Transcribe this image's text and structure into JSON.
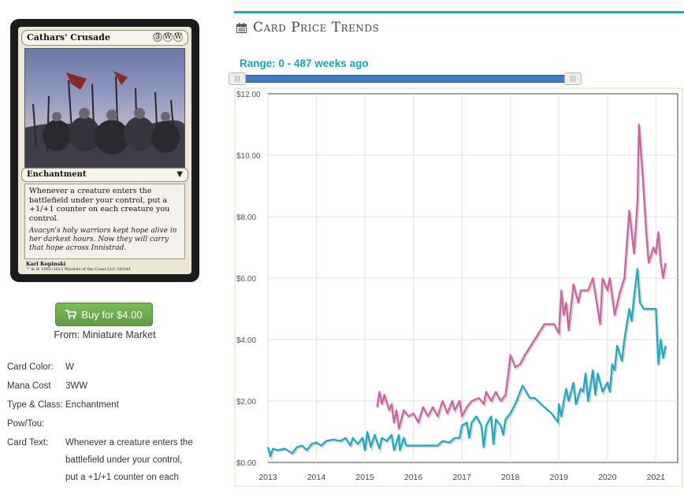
{
  "card": {
    "name": "Cathars' Crusade",
    "mana_cost_symbols": [
      "3",
      "W",
      "W"
    ],
    "type_line": "Enchantment",
    "rules_text": "Whenever a creature enters the battlefield under your control, put a +1/+1 counter on each creature you control.",
    "flavor_text": "Avacyn's holy warriors kept hope alive in her darkest hours. Now they will carry that hope across Innistrad.",
    "artist": "Karl Kopinski",
    "copyright": "™ & © 1993–2012 Wizards of the Coast LLC 10/244"
  },
  "buy": {
    "label": "Buy for $4.00",
    "icon": "shopping-cart-icon",
    "color": "#6aa84f"
  },
  "from": {
    "label": "From:",
    "store": "Miniature Market"
  },
  "details": {
    "rows": [
      {
        "label": "Card Color:",
        "value": "W"
      },
      {
        "label": "Mana Cost",
        "value": "3WW"
      },
      {
        "label": "Type & Class:",
        "value": "Enchantment"
      },
      {
        "label": "Pow/Tou:",
        "value": ""
      },
      {
        "label": "Card Text:",
        "lines": [
          "Whenever a creature enters the",
          "battlefield under your control,",
          "put a +1/+1 counter on each"
        ]
      }
    ]
  },
  "trends": {
    "title": "Card Price Trends",
    "icon": "calendar-icon",
    "range_label": "Range: 0 - 487 weeks ago",
    "accent": "#19a9c3"
  },
  "chart_data": {
    "type": "line",
    "title": "",
    "xlabel": "",
    "ylabel": "",
    "x_ticks": [
      "2013",
      "2014",
      "2015",
      "2016",
      "2017",
      "2018",
      "2019",
      "2020",
      "2021"
    ],
    "y_ticks": [
      "$0.00",
      "$2.00",
      "$4.00",
      "$6.00",
      "$8.00",
      "$10.00",
      "$12.00"
    ],
    "ylim": [
      0,
      12
    ],
    "xlim": [
      2013.0,
      2021.45
    ],
    "grid": true,
    "series": [
      {
        "color": "#19a9c3",
        "points": [
          [
            2013.0,
            0.5
          ],
          [
            2013.05,
            0.2
          ],
          [
            2013.1,
            0.45
          ],
          [
            2013.2,
            0.4
          ],
          [
            2013.35,
            0.45
          ],
          [
            2013.5,
            0.3
          ],
          [
            2013.6,
            0.5
          ],
          [
            2013.7,
            0.55
          ],
          [
            2013.8,
            0.4
          ],
          [
            2013.9,
            0.6
          ],
          [
            2014.0,
            0.65
          ],
          [
            2014.1,
            0.55
          ],
          [
            2014.2,
            0.7
          ],
          [
            2014.35,
            0.75
          ],
          [
            2014.5,
            0.7
          ],
          [
            2014.6,
            0.8
          ],
          [
            2014.7,
            0.55
          ],
          [
            2014.75,
            0.8
          ],
          [
            2014.85,
            0.6
          ],
          [
            2014.95,
            0.8
          ],
          [
            2015.0,
            0.4
          ],
          [
            2015.05,
            1.0
          ],
          [
            2015.12,
            0.5
          ],
          [
            2015.2,
            0.9
          ],
          [
            2015.3,
            0.45
          ],
          [
            2015.35,
            0.8
          ],
          [
            2015.45,
            0.7
          ],
          [
            2015.55,
            0.9
          ],
          [
            2015.6,
            0.4
          ],
          [
            2015.7,
            0.9
          ],
          [
            2015.72,
            0.4
          ],
          [
            2015.8,
            0.8
          ],
          [
            2015.85,
            0.55
          ],
          [
            2016.0,
            0.55
          ],
          [
            2016.5,
            0.55
          ],
          [
            2016.6,
            0.7
          ],
          [
            2016.75,
            0.65
          ],
          [
            2016.85,
            0.8
          ],
          [
            2016.95,
            0.8
          ],
          [
            2017.0,
            1.2
          ],
          [
            2017.1,
            1.3
          ],
          [
            2017.15,
            0.8
          ],
          [
            2017.2,
            1.3
          ],
          [
            2017.3,
            1.5
          ],
          [
            2017.4,
            1.2
          ],
          [
            2017.45,
            0.5
          ],
          [
            2017.5,
            1.2
          ],
          [
            2017.6,
            1.5
          ],
          [
            2017.65,
            0.6
          ],
          [
            2017.7,
            1.4
          ],
          [
            2017.8,
            1.2
          ],
          [
            2017.85,
            0.9
          ],
          [
            2017.9,
            1.4
          ],
          [
            2018.0,
            1.6
          ],
          [
            2018.1,
            1.9
          ],
          [
            2018.25,
            2.5
          ],
          [
            2018.4,
            2.1
          ],
          [
            2018.5,
            2.1
          ],
          [
            2018.7,
            1.8
          ],
          [
            2018.85,
            1.6
          ],
          [
            2018.98,
            1.3
          ],
          [
            2019.0,
            1.9
          ],
          [
            2019.05,
            1.5
          ],
          [
            2019.1,
            2.0
          ],
          [
            2019.15,
            2.4
          ],
          [
            2019.2,
            2.0
          ],
          [
            2019.3,
            2.6
          ],
          [
            2019.35,
            1.9
          ],
          [
            2019.45,
            2.4
          ],
          [
            2019.5,
            2.3
          ],
          [
            2019.55,
            2.9
          ],
          [
            2019.6,
            2.0
          ],
          [
            2019.7,
            3.0
          ],
          [
            2019.75,
            2.2
          ],
          [
            2019.8,
            2.9
          ],
          [
            2019.9,
            2.3
          ],
          [
            2020.0,
            2.6
          ],
          [
            2020.05,
            2.3
          ],
          [
            2020.1,
            3.2
          ],
          [
            2020.15,
            3.0
          ],
          [
            2020.2,
            3.8
          ],
          [
            2020.3,
            3.3
          ],
          [
            2020.35,
            4.0
          ],
          [
            2020.45,
            5.0
          ],
          [
            2020.5,
            4.6
          ],
          [
            2020.55,
            5.4
          ],
          [
            2020.62,
            6.3
          ],
          [
            2020.67,
            5.2
          ],
          [
            2020.75,
            5.0
          ],
          [
            2021.0,
            5.0
          ],
          [
            2021.05,
            3.2
          ],
          [
            2021.1,
            4.0
          ],
          [
            2021.15,
            3.4
          ],
          [
            2021.2,
            3.8
          ]
        ]
      },
      {
        "color": "#d55d9f",
        "points": [
          [
            2015.25,
            1.8
          ],
          [
            2015.3,
            2.3
          ],
          [
            2015.35,
            1.9
          ],
          [
            2015.4,
            2.2
          ],
          [
            2015.5,
            1.7
          ],
          [
            2015.55,
            1.9
          ],
          [
            2015.6,
            1.3
          ],
          [
            2015.65,
            1.7
          ],
          [
            2015.7,
            1.1
          ],
          [
            2015.8,
            1.7
          ],
          [
            2015.9,
            1.5
          ],
          [
            2016.0,
            1.6
          ],
          [
            2016.1,
            1.3
          ],
          [
            2016.2,
            1.8
          ],
          [
            2016.3,
            1.5
          ],
          [
            2016.4,
            1.8
          ],
          [
            2016.5,
            1.5
          ],
          [
            2016.6,
            2.0
          ],
          [
            2016.7,
            1.6
          ],
          [
            2016.8,
            2.0
          ],
          [
            2016.85,
            1.7
          ],
          [
            2016.95,
            2.0
          ],
          [
            2017.0,
            1.5
          ],
          [
            2017.1,
            1.8
          ],
          [
            2017.2,
            2.0
          ],
          [
            2017.35,
            2.1
          ],
          [
            2017.45,
            1.9
          ],
          [
            2017.5,
            2.3
          ],
          [
            2017.6,
            2.0
          ],
          [
            2017.7,
            2.3
          ],
          [
            2017.8,
            2.0
          ],
          [
            2017.9,
            2.2
          ],
          [
            2017.95,
            2.8
          ],
          [
            2018.0,
            3.5
          ],
          [
            2018.1,
            3.1
          ],
          [
            2018.2,
            3.2
          ],
          [
            2018.3,
            3.5
          ],
          [
            2018.5,
            4.0
          ],
          [
            2018.7,
            4.5
          ],
          [
            2018.9,
            4.5
          ],
          [
            2019.0,
            4.2
          ],
          [
            2019.05,
            5.6
          ],
          [
            2019.1,
            4.8
          ],
          [
            2019.15,
            5.2
          ],
          [
            2019.2,
            4.3
          ],
          [
            2019.3,
            5.8
          ],
          [
            2019.4,
            5.2
          ],
          [
            2019.45,
            5.6
          ],
          [
            2019.6,
            5.6
          ],
          [
            2019.7,
            6.0
          ],
          [
            2019.85,
            4.5
          ],
          [
            2019.9,
            6.0
          ],
          [
            2020.0,
            5.6
          ],
          [
            2020.05,
            6.0
          ],
          [
            2020.15,
            4.8
          ],
          [
            2020.25,
            5.5
          ],
          [
            2020.35,
            6.0
          ],
          [
            2020.45,
            8.2
          ],
          [
            2020.55,
            6.8
          ],
          [
            2020.62,
            8.5
          ],
          [
            2020.65,
            11.0
          ],
          [
            2020.72,
            9.5
          ],
          [
            2020.8,
            7.5
          ],
          [
            2020.85,
            6.5
          ],
          [
            2020.95,
            7.0
          ],
          [
            2021.0,
            6.8
          ],
          [
            2021.05,
            7.5
          ],
          [
            2021.1,
            6.5
          ],
          [
            2021.15,
            6.0
          ],
          [
            2021.2,
            6.5
          ]
        ]
      }
    ]
  }
}
